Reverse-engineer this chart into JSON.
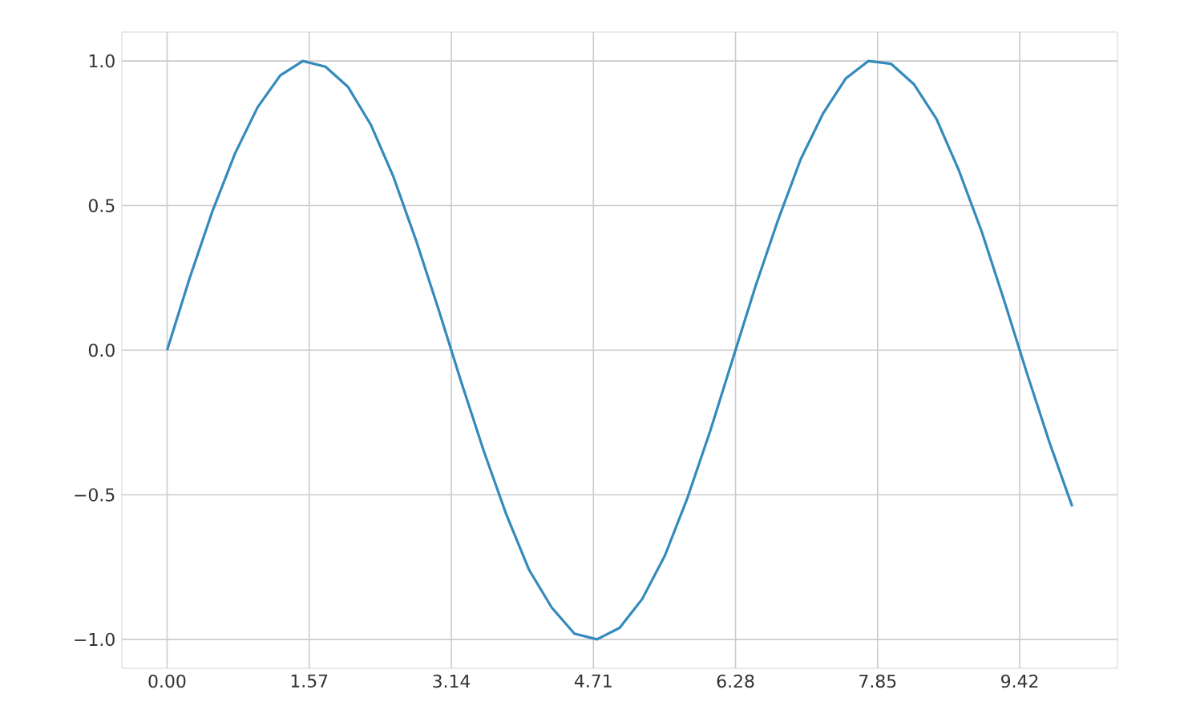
{
  "chart_data": {
    "type": "line",
    "color": "#348abd",
    "x": [
      0,
      0.25,
      0.5,
      0.75,
      1,
      1.25,
      1.5,
      1.75,
      2,
      2.25,
      2.5,
      2.75,
      3,
      3.25,
      3.5,
      3.75,
      4,
      4.25,
      4.5,
      4.75,
      5,
      5.25,
      5.5,
      5.75,
      6,
      6.25,
      6.5,
      6.75,
      7,
      7.25,
      7.5,
      7.75,
      8,
      8.25,
      8.5,
      8.75,
      9,
      9.25,
      9.5,
      9.75,
      10
    ],
    "values": [
      0,
      0.25,
      0.48,
      0.68,
      0.84,
      0.95,
      1.0,
      0.98,
      0.91,
      0.78,
      0.6,
      0.38,
      0.14,
      -0.11,
      -0.35,
      -0.57,
      -0.76,
      -0.89,
      -0.98,
      -1.0,
      -0.96,
      -0.86,
      -0.71,
      -0.51,
      -0.28,
      -0.03,
      0.22,
      0.45,
      0.66,
      0.82,
      0.94,
      1.0,
      0.99,
      0.92,
      0.8,
      0.62,
      0.41,
      0.17,
      -0.08,
      -0.32,
      -0.54
    ],
    "xlim": [
      -0.5,
      10.5
    ],
    "ylim": [
      -1.1,
      1.1
    ],
    "xticks": [
      {
        "value": 0,
        "label": "0.00"
      },
      {
        "value": 1.57,
        "label": "1.57"
      },
      {
        "value": 3.14,
        "label": "3.14"
      },
      {
        "value": 4.71,
        "label": "4.71"
      },
      {
        "value": 6.28,
        "label": "6.28"
      },
      {
        "value": 7.85,
        "label": "7.85"
      },
      {
        "value": 9.42,
        "label": "9.42"
      }
    ],
    "yticks": [
      {
        "value": -1.0,
        "label": "−1.0"
      },
      {
        "value": -0.5,
        "label": "−0.5"
      },
      {
        "value": 0.0,
        "label": "0.0"
      },
      {
        "value": 0.5,
        "label": "0.5"
      },
      {
        "value": 1.0,
        "label": "1.0"
      }
    ],
    "grid": true,
    "marker": "none",
    "line_style": "solid"
  }
}
